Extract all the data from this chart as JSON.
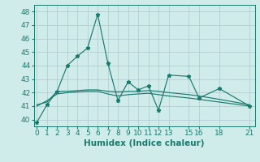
{
  "xlabel": "Humidex (Indice chaleur)",
  "background_color": "#d0ecea",
  "grid_color": "#b0c8cc",
  "line_color": "#1a7a6e",
  "xlim": [
    -0.3,
    21.5
  ],
  "ylim": [
    39.5,
    48.5
  ],
  "yticks": [
    40,
    41,
    42,
    43,
    44,
    45,
    46,
    47,
    48
  ],
  "xtick_positions": [
    0,
    1,
    2,
    3,
    4,
    5,
    6,
    7,
    8,
    9,
    10,
    11,
    12,
    13,
    15,
    16,
    18,
    21
  ],
  "xtick_labels": [
    "0",
    "1",
    "2",
    "3",
    "4",
    "5",
    "6",
    "7",
    "8",
    "9",
    "10",
    "11",
    "12",
    "13",
    "15",
    "16",
    "18",
    "21"
  ],
  "series1_x": [
    0,
    1,
    2,
    3,
    4,
    5,
    6,
    7,
    8,
    9,
    10,
    11,
    12,
    13,
    15,
    16,
    18,
    21
  ],
  "series1_y": [
    39.8,
    41.1,
    42.1,
    44.0,
    44.7,
    45.3,
    47.8,
    44.2,
    41.4,
    42.8,
    42.2,
    42.5,
    40.7,
    43.3,
    43.2,
    41.6,
    42.3,
    41.0
  ],
  "series2_x": [
    0,
    1,
    2,
    3,
    5,
    6,
    7,
    8,
    9,
    10,
    11,
    12,
    13,
    15,
    16,
    18,
    21
  ],
  "series2_y": [
    41.1,
    41.3,
    42.1,
    42.1,
    42.2,
    42.2,
    42.1,
    42.05,
    42.1,
    42.1,
    42.15,
    42.1,
    42.0,
    41.85,
    41.75,
    41.5,
    41.1
  ],
  "series3_x": [
    0,
    1,
    2,
    3,
    4,
    5,
    6,
    7,
    8,
    9,
    10,
    11,
    12,
    13,
    15,
    16,
    18,
    21
  ],
  "series3_y": [
    41.0,
    41.4,
    41.9,
    42.0,
    42.05,
    42.1,
    42.1,
    41.9,
    41.75,
    41.85,
    41.9,
    41.95,
    41.85,
    41.75,
    41.6,
    41.5,
    41.3,
    41.0
  ],
  "fontsize_label": 7.5,
  "fontsize_tick": 6.5,
  "marker": "*",
  "markersize": 3.5,
  "linewidth": 0.85
}
